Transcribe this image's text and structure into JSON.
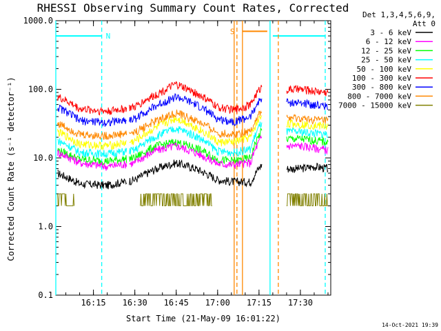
{
  "chart_data": {
    "type": "line",
    "title": "RHESSI Observing Summary Count Rates, Corrected",
    "xlabel": "Start Time (21-May-09 16:01:22)",
    "ylabel": "Corrected Count Rate (s⁻¹ detector⁻¹)",
    "yscale": "log",
    "ylim": [
      0.1,
      1000
    ],
    "xlim": [
      "16:01:22",
      "17:41:00"
    ],
    "x_ticks": [
      "16:15",
      "16:30",
      "16:45",
      "17:00",
      "17:15",
      "17:30"
    ],
    "y_ticks": [
      "0.1",
      "1.0",
      "10.0",
      "100.0",
      "1000.0"
    ],
    "legend_header": [
      "Det 1,3,4,5,6,9,",
      "Att 0"
    ],
    "legend_position": "right, outside plot",
    "footer": "14-Oct-2021 19:39",
    "gaps": [
      [
        "16:27",
        "16:28"
      ],
      [
        "17:19",
        "17:25"
      ]
    ],
    "x_samples": [
      "16:02",
      "16:10",
      "16:20",
      "16:30",
      "16:38",
      "16:45",
      "16:52",
      "17:00",
      "17:06",
      "17:12",
      "17:16"
    ],
    "x_samples_after_gap": [
      "17:25",
      "17:30",
      "17:35",
      "17:40"
    ],
    "series": [
      {
        "name": "3 - 6 keV",
        "color": "#000000",
        "values": [
          6,
          4.2,
          4,
          4.8,
          7,
          8.5,
          7,
          4.8,
          4.5,
          4.5,
          8
        ],
        "values_after_gap": [
          7,
          7,
          7.5,
          7
        ]
      },
      {
        "name": "6 - 12 keV",
        "color": "#ff00ff",
        "values": [
          12,
          8.5,
          7.5,
          8.5,
          13,
          15,
          12,
          8.2,
          8,
          8.5,
          20
        ],
        "values_after_gap": [
          15,
          15,
          14,
          13
        ]
      },
      {
        "name": "12 - 25 keV",
        "color": "#00ff00",
        "values": [
          13,
          9.5,
          9,
          10,
          15,
          17,
          14,
          9.5,
          9,
          10,
          25
        ],
        "values_after_gap": [
          19,
          19,
          18,
          17
        ]
      },
      {
        "name": "25 - 50 keV",
        "color": "#00ffff",
        "values": [
          18,
          12,
          11.5,
          13,
          21,
          27,
          21,
          12.5,
          12,
          13.5,
          33
        ],
        "values_after_gap": [
          24,
          24,
          23,
          22
        ]
      },
      {
        "name": "50 - 100 keV",
        "color": "#ffff00",
        "values": [
          24,
          16,
          15,
          17.5,
          28,
          38,
          28,
          17,
          17,
          20,
          42
        ],
        "values_after_gap": [
          32,
          31,
          30,
          29
        ]
      },
      {
        "name": "100 - 300 keV",
        "color": "#ff0000",
        "values": [
          78,
          52,
          48,
          55,
          85,
          118,
          88,
          55,
          50,
          60,
          110
        ],
        "values_after_gap": [
          100,
          100,
          95,
          90
        ]
      },
      {
        "name": "300 - 800 keV",
        "color": "#0000ff",
        "values": [
          55,
          35,
          33,
          37,
          58,
          78,
          60,
          37,
          34,
          40,
          75
        ],
        "values_after_gap": [
          65,
          63,
          60,
          57
        ]
      },
      {
        "name": "800 - 7000 keV",
        "color": "#ff8800",
        "values": [
          32,
          22,
          21,
          23.5,
          35,
          45,
          35,
          23,
          22,
          25,
          48
        ],
        "values_after_gap": [
          38,
          37,
          36,
          35
        ]
      },
      {
        "name": "7000 - 15000 keV",
        "color": "#808000",
        "values": [
          2,
          0,
          0,
          0,
          2,
          3,
          2,
          0,
          0,
          0,
          0
        ],
        "values_after_gap": [
          3,
          3,
          2,
          2
        ]
      }
    ],
    "flags": [
      {
        "label": "N",
        "color": "#00ffff",
        "start": "16:01:22",
        "end": "16:18",
        "level": 600
      },
      {
        "label": "",
        "color": "#00ffff",
        "start": "17:20",
        "end": "17:39",
        "level": 600
      },
      {
        "label": "S",
        "color": "#ff8800",
        "start": "17:09",
        "end": "17:18",
        "level": 700
      }
    ],
    "vlines": [
      {
        "time": "16:01:22",
        "color": "#00ffff",
        "style": "solid"
      },
      {
        "time": "16:18",
        "color": "#00ffff",
        "style": "dashed"
      },
      {
        "time": "17:06",
        "color": "#ff8800",
        "style": "solid"
      },
      {
        "time": "17:07",
        "color": "#ff8800",
        "style": "dashed"
      },
      {
        "time": "17:09",
        "color": "#ff8800",
        "style": "solid"
      },
      {
        "time": "17:19",
        "color": "#00ffff",
        "style": "solid"
      },
      {
        "time": "17:22",
        "color": "#ff8800",
        "style": "dashed"
      },
      {
        "time": "17:39",
        "color": "#00ffff",
        "style": "dashed"
      }
    ]
  }
}
